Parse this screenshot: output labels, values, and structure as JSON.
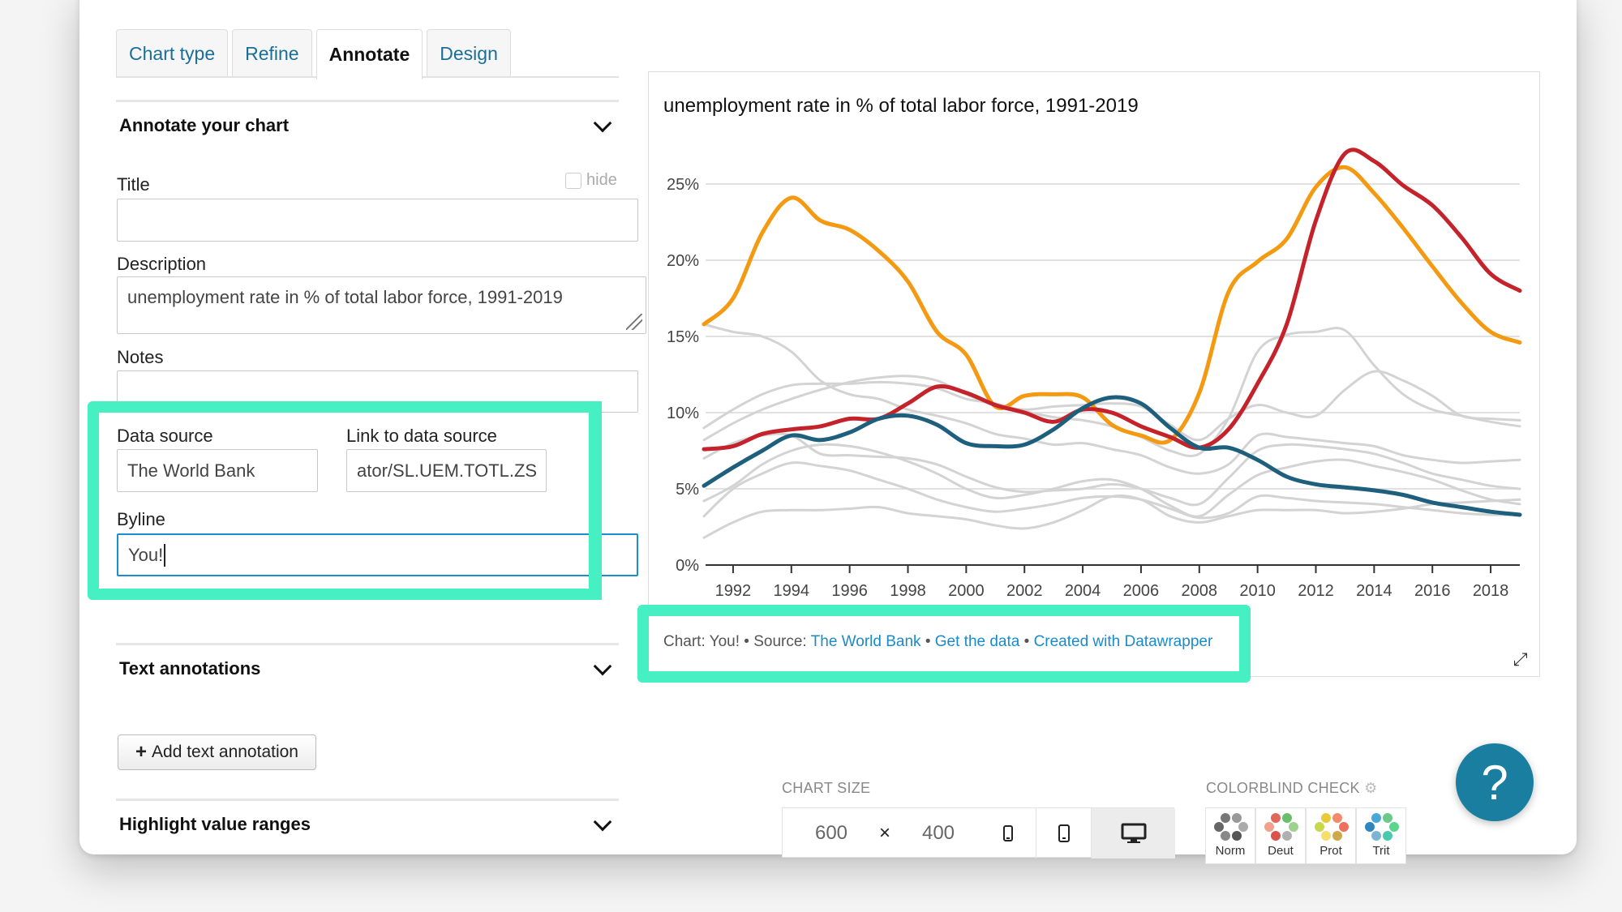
{
  "tabs": [
    {
      "label": "Chart type"
    },
    {
      "label": "Refine"
    },
    {
      "label": "Annotate"
    },
    {
      "label": "Design"
    }
  ],
  "annotate": {
    "heading": "Annotate your chart",
    "title_label": "Title",
    "title_value": "",
    "hide_label": "hide",
    "description_label": "Description",
    "description_value": "unemployment rate in % of total labor force, 1991-2019",
    "notes_label": "Notes",
    "notes_value": "",
    "data_source_label": "Data source",
    "data_source_value": "The World Bank",
    "link_label": "Link to data source",
    "link_value": "ator/SL.UEM.TOTL.ZS",
    "byline_label": "Byline",
    "byline_value": "You!"
  },
  "text_annotations": {
    "heading": "Text annotations",
    "add_button": "Add text annotation"
  },
  "highlight": {
    "heading": "Highlight value ranges"
  },
  "chart_footer": {
    "prefix": "Chart: You! • Source: ",
    "source_link": "The World Bank",
    "sep1": " • ",
    "data_link": "Get the data",
    "sep2": " • ",
    "made_link": "Created with Datawrapper"
  },
  "chart_size": {
    "label": "CHART SIZE",
    "width": "600",
    "times": "×",
    "height": "400"
  },
  "colorblind": {
    "label": "COLORBLIND CHECK",
    "modes": [
      {
        "label": "Norm"
      },
      {
        "label": "Deut"
      },
      {
        "label": "Prot"
      },
      {
        "label": "Trit"
      }
    ]
  },
  "help": {
    "label": "?"
  },
  "colors": {
    "accent_highlight": "#47f0c2",
    "orange": "#f49a12",
    "red": "#c4232b",
    "blue": "#1d5f7d",
    "grey": "#d3d3d3",
    "link": "#1a8bc9"
  },
  "chart_data": {
    "type": "line",
    "title": "unemployment rate in % of total labor force, 1991-2019",
    "xlabel": "",
    "ylabel": "",
    "ylim": [
      0,
      27
    ],
    "grid": true,
    "x_ticks": [
      "1992",
      "1994",
      "1996",
      "1998",
      "2000",
      "2002",
      "2004",
      "2006",
      "2008",
      "2010",
      "2012",
      "2014",
      "2016",
      "2018"
    ],
    "y_ticks": [
      "0%",
      "5%",
      "10%",
      "15%",
      "20%",
      "25%"
    ],
    "x": [
      1991,
      1992,
      1993,
      1994,
      1995,
      1996,
      1997,
      1998,
      1999,
      2000,
      2001,
      2002,
      2003,
      2004,
      2005,
      2006,
      2007,
      2008,
      2009,
      2010,
      2011,
      2012,
      2013,
      2014,
      2015,
      2016,
      2017,
      2018,
      2019
    ],
    "series": [
      {
        "color": "orange",
        "values": [
          15.8,
          17.5,
          21.8,
          24.1,
          22.6,
          22.0,
          20.6,
          18.6,
          15.3,
          13.8,
          10.4,
          11.1,
          11.2,
          11.0,
          9.2,
          8.5,
          8.2,
          11.3,
          17.9,
          19.9,
          21.4,
          24.8,
          26.1,
          24.4,
          22.1,
          19.6,
          17.2,
          15.3,
          14.6
        ]
      },
      {
        "color": "red",
        "values": [
          7.6,
          7.8,
          8.6,
          8.9,
          9.1,
          9.6,
          9.6,
          10.6,
          11.7,
          11.3,
          10.5,
          10.0,
          9.4,
          10.2,
          10.0,
          9.1,
          8.4,
          7.7,
          8.9,
          11.9,
          15.8,
          22.6,
          27.0,
          26.5,
          24.9,
          23.6,
          21.5,
          19.1,
          18.0
        ]
      },
      {
        "color": "blue",
        "values": [
          5.2,
          6.4,
          7.5,
          8.5,
          8.2,
          8.7,
          9.6,
          9.8,
          9.2,
          8.0,
          7.8,
          7.9,
          8.9,
          10.3,
          11.0,
          10.6,
          9.0,
          7.7,
          7.7,
          6.9,
          5.8,
          5.3,
          5.1,
          4.9,
          4.6,
          4.1,
          3.8,
          3.5,
          3.3
        ]
      },
      {
        "color": "grey",
        "values": [
          15.8,
          15.3,
          15.0,
          14.0,
          12.1,
          11.2,
          10.9,
          10.2,
          9.8,
          9.3,
          8.6,
          8.3,
          7.9,
          8.0,
          7.6,
          7.2,
          6.4,
          6.0,
          6.6,
          8.5,
          8.4,
          8.2,
          8.0,
          7.8,
          7.2,
          6.9,
          6.7,
          6.8,
          6.9
        ]
      },
      {
        "color": "grey",
        "values": [
          9.0,
          10.2,
          11.2,
          11.8,
          11.9,
          11.9,
          12.0,
          11.9,
          11.6,
          10.9,
          10.6,
          10.1,
          9.7,
          9.5,
          9.1,
          8.4,
          7.5,
          7.3,
          9.6,
          14.0,
          15.1,
          15.3,
          15.4,
          13.1,
          11.2,
          10.2,
          9.8,
          9.4,
          9.1
        ]
      },
      {
        "color": "grey",
        "values": [
          8.2,
          9.3,
          10.2,
          10.9,
          11.5,
          12.0,
          12.3,
          12.4,
          12.1,
          11.2,
          10.5,
          10.2,
          10.4,
          10.5,
          10.6,
          10.4,
          9.2,
          8.2,
          9.6,
          10.5,
          10.0,
          9.8,
          11.5,
          12.7,
          12.1,
          11.1,
          9.8,
          9.6,
          9.5
        ]
      },
      {
        "color": "grey",
        "values": [
          7.0,
          8.0,
          8.5,
          8.5,
          7.3,
          7.2,
          7.1,
          7.0,
          6.6,
          5.8,
          5.1,
          4.8,
          4.9,
          5.0,
          5.3,
          5.0,
          4.4,
          4.0,
          5.7,
          7.5,
          7.9,
          7.8,
          7.6,
          7.3,
          6.7,
          6.0,
          5.6,
          5.2,
          5.0
        ]
      },
      {
        "color": "grey",
        "values": [
          4.2,
          5.2,
          6.6,
          7.5,
          7.9,
          7.8,
          7.4,
          6.8,
          6.0,
          5.0,
          4.4,
          4.6,
          5.0,
          5.5,
          5.6,
          5.0,
          3.9,
          3.2,
          4.6,
          5.9,
          6.4,
          6.8,
          6.9,
          6.5,
          6.1,
          5.6,
          4.9,
          4.3,
          4.0
        ]
      },
      {
        "color": "grey",
        "values": [
          3.2,
          5.0,
          6.0,
          6.7,
          6.5,
          6.2,
          5.6,
          5.0,
          4.3,
          3.8,
          3.5,
          3.7,
          4.0,
          4.4,
          4.5,
          4.3,
          3.7,
          3.1,
          3.4,
          4.5,
          4.4,
          4.2,
          4.1,
          4.0,
          3.8,
          3.6,
          3.4,
          3.3,
          3.3
        ]
      },
      {
        "color": "grey",
        "values": [
          1.8,
          2.8,
          3.5,
          3.6,
          3.6,
          3.7,
          3.8,
          3.4,
          3.2,
          3.0,
          2.6,
          2.4,
          2.8,
          3.6,
          4.5,
          4.3,
          3.2,
          2.8,
          3.2,
          3.6,
          3.6,
          3.6,
          3.4,
          3.5,
          3.7,
          4.0,
          4.1,
          4.2,
          4.3
        ]
      }
    ]
  }
}
